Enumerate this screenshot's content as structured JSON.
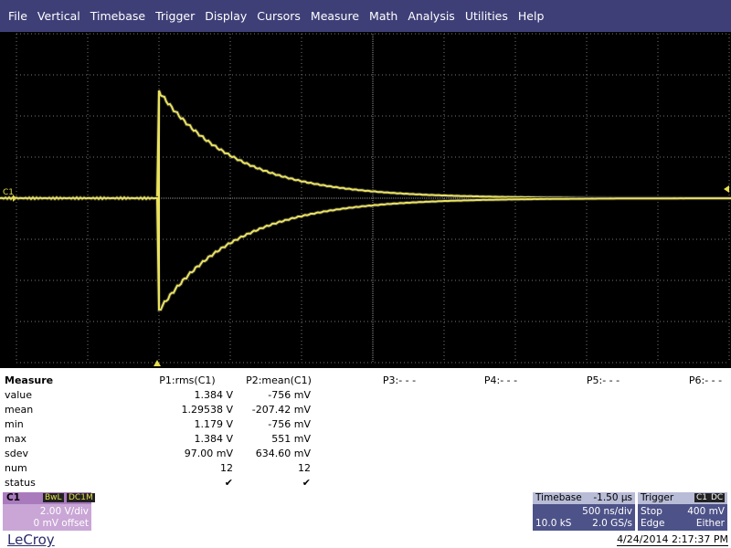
{
  "menu": [
    "File",
    "Vertical",
    "Timebase",
    "Trigger",
    "Display",
    "Cursors",
    "Measure",
    "Math",
    "Analysis",
    "Utilities",
    "Help"
  ],
  "channel_marker": "C1",
  "measure": {
    "title": "Measure",
    "columns": [
      "P1:rms(C1)",
      "P2:mean(C1)",
      "P3:- - -",
      "P4:- - -",
      "P5:- - -",
      "P6:- - -"
    ],
    "rows": [
      {
        "label": "value",
        "cells": [
          "1.384 V",
          "-756 mV"
        ]
      },
      {
        "label": "mean",
        "cells": [
          "1.29538 V",
          "-207.42 mV"
        ]
      },
      {
        "label": "min",
        "cells": [
          "1.179 V",
          "-756 mV"
        ]
      },
      {
        "label": "max",
        "cells": [
          "1.384 V",
          "551 mV"
        ]
      },
      {
        "label": "sdev",
        "cells": [
          "97.00 mV",
          "634.60 mV"
        ]
      },
      {
        "label": "num",
        "cells": [
          "12",
          "12"
        ]
      },
      {
        "label": "status",
        "cells": [
          "✔",
          "✔"
        ]
      }
    ]
  },
  "channel_box": {
    "name": "C1",
    "bandwidth": "BwL",
    "coupling": "DC1M",
    "scale": "2.00 V/div",
    "offset": "0 mV offset"
  },
  "timebase": {
    "title": "Timebase",
    "delay": "-1.50 µs",
    "scale": "500 ns/div",
    "samples": "10.0 kS",
    "rate": "2.0 GS/s"
  },
  "trigger": {
    "title": "Trigger",
    "source": "C1",
    "coupling": "DC",
    "mode": "Stop",
    "level": "400 mV",
    "type": "Edge",
    "slope": "Either"
  },
  "brand": "LeCroy",
  "timestamp": "4/24/2014 2:17:37 PM"
}
